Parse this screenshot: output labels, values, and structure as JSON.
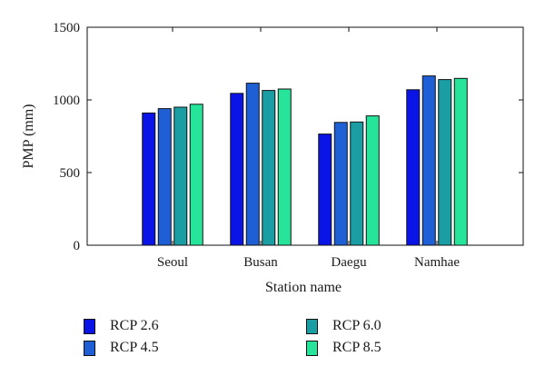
{
  "chart_data": {
    "type": "bar",
    "categories": [
      "Seoul",
      "Busan",
      "Daegu",
      "Namhae"
    ],
    "series": [
      {
        "name": "RCP 2.6",
        "color": "#0a14e6",
        "values": [
          910,
          1045,
          765,
          1070
        ]
      },
      {
        "name": "RCP 4.5",
        "color": "#1f5fd6",
        "values": [
          940,
          1115,
          845,
          1165
        ]
      },
      {
        "name": "RCP 6.0",
        "color": "#1b9ea3",
        "values": [
          950,
          1065,
          848,
          1140
        ]
      },
      {
        "name": "RCP 8.5",
        "color": "#26e59a",
        "values": [
          970,
          1075,
          890,
          1148
        ]
      }
    ],
    "title": "",
    "xlabel": "Station name",
    "ylabel": "PMP (mm)",
    "ylim": [
      0,
      1500
    ],
    "yticks": [
      "0",
      "500",
      "1000",
      "1500"
    ],
    "grid": false,
    "legend_position": "bottom"
  }
}
